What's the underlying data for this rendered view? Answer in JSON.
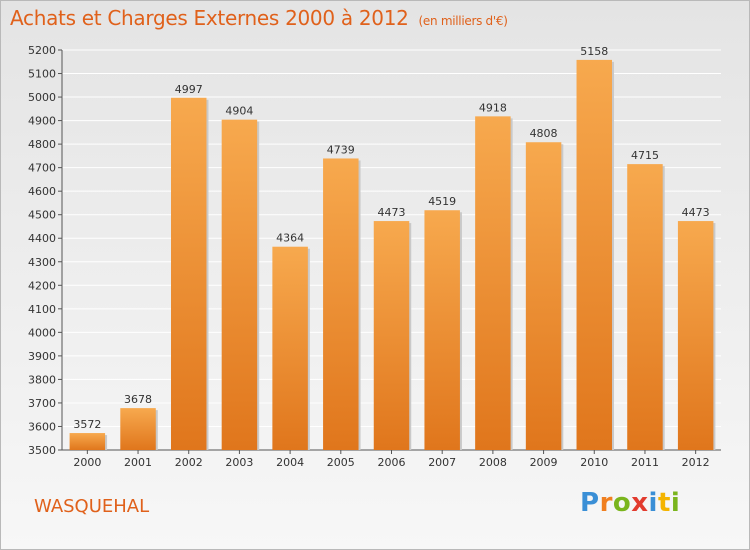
{
  "header": {
    "title": "Achats et Charges Externes 2000 à 2012",
    "unit": "(en milliers d'€)"
  },
  "footer": {
    "place": "WASQUEHAL",
    "logo_letters": [
      "P",
      "r",
      "o",
      "x",
      "i",
      "t",
      "i"
    ],
    "logo_colors": [
      "#3a8fd6",
      "#f07f1f",
      "#7ab51d",
      "#e23b2e",
      "#3a8fd6",
      "#f4b400",
      "#7ab51d"
    ]
  },
  "chart_data": {
    "type": "bar",
    "title": "Achats et Charges Externes 2000 à 2012",
    "subtitle": "(en milliers d'€)",
    "categories": [
      "2000",
      "2001",
      "2002",
      "2003",
      "2004",
      "2005",
      "2006",
      "2007",
      "2008",
      "2009",
      "2010",
      "2011",
      "2012"
    ],
    "values": [
      3572,
      3678,
      4997,
      4904,
      4364,
      4739,
      4473,
      4519,
      4918,
      4808,
      5158,
      4715,
      4473
    ],
    "ylim": [
      3500,
      5200
    ],
    "yticks": [
      3500,
      3600,
      3700,
      3800,
      3900,
      4000,
      4100,
      4200,
      4300,
      4400,
      4500,
      4600,
      4700,
      4800,
      4900,
      5000,
      5100,
      5200
    ],
    "grid": true,
    "colors": {
      "bar_top": "#f7a94e",
      "bar_bottom": "#e0761c",
      "grid": "#ffffff"
    }
  }
}
